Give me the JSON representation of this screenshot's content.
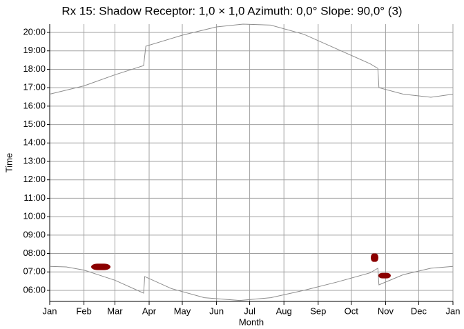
{
  "chart_data": {
    "type": "line",
    "title": "Rx 15: Shadow Receptor: 1,0 × 1,0  Azimuth: 0,0°  Slope: 90,0° (3)",
    "x_label": "Month",
    "y_label": "Time",
    "xlim": [
      0,
      365
    ],
    "ylim": [
      5.4,
      20.45
    ],
    "xticks": [
      {
        "value": 0,
        "label": "Jan"
      },
      {
        "value": 31,
        "label": "Feb"
      },
      {
        "value": 59,
        "label": "Mar"
      },
      {
        "value": 90,
        "label": "Apr"
      },
      {
        "value": 120,
        "label": "May"
      },
      {
        "value": 151,
        "label": "Jun"
      },
      {
        "value": 181,
        "label": "Jul"
      },
      {
        "value": 212,
        "label": "Aug"
      },
      {
        "value": 243,
        "label": "Sep"
      },
      {
        "value": 273,
        "label": "Oct"
      },
      {
        "value": 304,
        "label": "Nov"
      },
      {
        "value": 334,
        "label": "Dec"
      },
      {
        "value": 365,
        "label": "Jan"
      }
    ],
    "yticks": [
      {
        "value": 6,
        "label": "06:00"
      },
      {
        "value": 7,
        "label": "07:00"
      },
      {
        "value": 8,
        "label": "08:00"
      },
      {
        "value": 9,
        "label": "09:00"
      },
      {
        "value": 10,
        "label": "10:00"
      },
      {
        "value": 11,
        "label": "11:00"
      },
      {
        "value": 12,
        "label": "12:00"
      },
      {
        "value": 13,
        "label": "13:00"
      },
      {
        "value": 14,
        "label": "14:00"
      },
      {
        "value": 15,
        "label": "15:00"
      },
      {
        "value": 16,
        "label": "16:00"
      },
      {
        "value": 17,
        "label": "17:00"
      },
      {
        "value": 18,
        "label": "18:00"
      },
      {
        "value": 19,
        "label": "19:00"
      },
      {
        "value": 20,
        "label": "20:00"
      }
    ],
    "grid": true,
    "series": [
      {
        "color": "#8c8c8c",
        "x": [
          0,
          31,
          59,
          85,
          87,
          120,
          151,
          175,
          200,
          230,
          260,
          290,
          297,
          298,
          320,
          345,
          365
        ],
        "values": [
          16.65,
          17.1,
          17.7,
          18.2,
          19.25,
          19.85,
          20.3,
          20.45,
          20.4,
          19.9,
          19.1,
          18.3,
          18.05,
          17.0,
          16.65,
          16.48,
          16.65
        ]
      },
      {
        "color": "#8c8c8c",
        "x": [
          0,
          15,
          31,
          59,
          85,
          86,
          110,
          140,
          172,
          200,
          230,
          260,
          290,
          297,
          298,
          320,
          345,
          365
        ],
        "values": [
          7.3,
          7.27,
          7.1,
          6.55,
          5.85,
          6.75,
          6.1,
          5.6,
          5.45,
          5.6,
          6.0,
          6.45,
          6.95,
          7.2,
          6.3,
          6.85,
          7.2,
          7.3
        ]
      }
    ],
    "shadow_color": "#8b0000",
    "shadow": [
      {
        "days": [
          37.5,
          55
        ],
        "hours": [
          7.1,
          7.45
        ]
      },
      {
        "days": [
          290.6,
          297.5
        ],
        "hours": [
          7.55,
          8.0
        ]
      },
      {
        "days": [
          297.5,
          308.7
        ],
        "hours": [
          6.65,
          6.95
        ]
      }
    ]
  }
}
